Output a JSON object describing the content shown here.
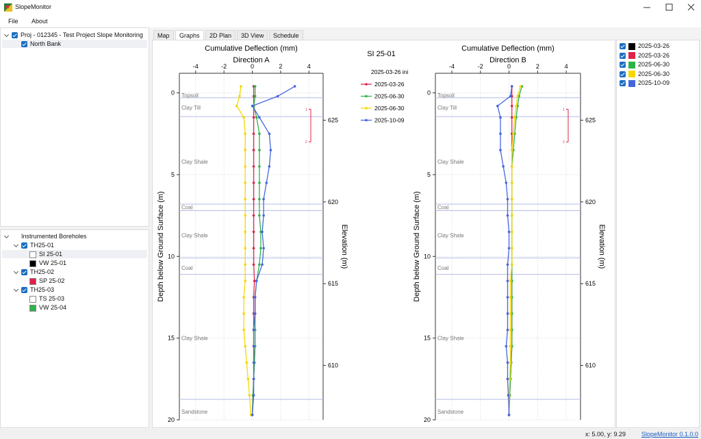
{
  "window": {
    "title": "SlopeMonitor"
  },
  "menu": [
    "File",
    "About"
  ],
  "project_tree": {
    "project": "Proj - 012345 - Test Project Slope Monitoring",
    "site": "North Bank"
  },
  "instrument_tree": {
    "root": "Instrumented Boreholes",
    "selected": "SI 25-01",
    "boreholes": [
      {
        "name": "TH25-01",
        "instruments": [
          {
            "name": "SI 25-01",
            "color": "#ffffff"
          },
          {
            "name": "VW 25-01",
            "color": "#000000"
          }
        ]
      },
      {
        "name": "TH25-02",
        "instruments": [
          {
            "name": "SP 25-02",
            "color": "#e0224a"
          }
        ]
      },
      {
        "name": "TH25-03",
        "instruments": [
          {
            "name": "TS 25-03",
            "color": "#ffffff"
          },
          {
            "name": "VW 25-04",
            "color": "#2db34a"
          }
        ]
      }
    ]
  },
  "tabs": {
    "items": [
      "Map",
      "Graphs",
      "2D Plan",
      "3D View",
      "Schedule"
    ],
    "active": 1
  },
  "chart_data": [
    {
      "type": "line",
      "title": "Cumulative Deflection (mm)",
      "subtitle": "Direction A",
      "ylabel": "Depth below Ground Surface (m)",
      "y2label": "Elevation (m)",
      "legend_title": "SI 25-01",
      "baseline_label": "2025-03-26 ini",
      "xlim": [
        -5.15,
        5
      ],
      "xticks": [
        -4,
        -2,
        0,
        2,
        4
      ],
      "ylim": [
        -1.2,
        20
      ],
      "y_inverted": true,
      "yticks": [
        0,
        5,
        10,
        15,
        20
      ],
      "y2lim": [
        606.67,
        627.87
      ],
      "y2ticks": [
        610,
        615,
        620,
        625
      ],
      "grid": true,
      "layer_lines": [
        0.3,
        1.45,
        6.8,
        7.2,
        10.1,
        11.1,
        18.75
      ],
      "layers": [
        {
          "name": "Topsoil",
          "depth": 0.15
        },
        {
          "name": "Clay Till",
          "depth": 0.9
        },
        {
          "name": "Clay Shale",
          "depth": 4.2
        },
        {
          "name": "Coal",
          "depth": 7.0
        },
        {
          "name": "Clay Shale",
          "depth": 8.7
        },
        {
          "name": "Coal",
          "depth": 10.7
        },
        {
          "name": "Clay Shale",
          "depth": 15.0
        },
        {
          "name": "Sandstone",
          "depth": 19.5
        }
      ],
      "range_marker": {
        "from": 1.0,
        "to": 3.0,
        "labels": [
          "1",
          "2"
        ],
        "color": "#e0224a"
      },
      "y": [
        -0.4,
        0.2,
        0.8,
        1.5,
        2.5,
        3.5,
        4.5,
        5.5,
        6.5,
        7.5,
        8.5,
        9.5,
        10.5,
        11.5,
        12.5,
        13.5,
        14.5,
        15.5,
        16.5,
        17.5,
        18.5,
        19.7
      ],
      "series": [
        {
          "name": "2025-03-26",
          "color": "#e0224a",
          "values": [
            0.1,
            0.1,
            0.1,
            0.1,
            0.1,
            0.1,
            0.1,
            0.1,
            0.1,
            0.1,
            0.1,
            0.1,
            0.1,
            0.15,
            0.1,
            0.1,
            0.1,
            0.1,
            0.15,
            0.1,
            0.05,
            0.0
          ]
        },
        {
          "name": "2025-06-30",
          "color": "#2db34a",
          "values": [
            0.2,
            0.2,
            0.1,
            0.3,
            0.5,
            0.5,
            0.5,
            0.5,
            0.5,
            0.5,
            0.6,
            0.6,
            0.5,
            0.3,
            0.2,
            0.2,
            0.2,
            0.2,
            0.15,
            0.1,
            0.05,
            0.0
          ]
        },
        {
          "name": "2025-06-30",
          "color": "#f5d800",
          "values": [
            -0.8,
            -0.9,
            -1.1,
            -0.6,
            -0.5,
            -0.5,
            -0.5,
            -0.5,
            -0.5,
            -0.5,
            -0.5,
            -0.5,
            -0.5,
            -0.5,
            -0.6,
            -0.6,
            -0.6,
            -0.5,
            -0.4,
            -0.3,
            -0.2,
            -0.1
          ]
        },
        {
          "name": "2025-10-09",
          "color": "#4466dd",
          "values": [
            3.0,
            1.8,
            0.0,
            0.5,
            1.2,
            1.3,
            1.2,
            1.0,
            0.8,
            0.8,
            0.7,
            0.8,
            0.7,
            0.3,
            0.2,
            0.2,
            0.1,
            0.1,
            0.1,
            0.1,
            0.1,
            0.0
          ]
        }
      ]
    },
    {
      "type": "line",
      "title": "Cumulative Deflection (mm)",
      "subtitle": "Direction B",
      "ylabel": "Depth below Ground Surface (m)",
      "y2label": "Elevation (m)",
      "xlim": [
        -5.15,
        5
      ],
      "xticks": [
        -4,
        -2,
        0,
        2,
        4
      ],
      "ylim": [
        -1.2,
        20
      ],
      "y_inverted": true,
      "yticks": [
        0,
        5,
        10,
        15,
        20
      ],
      "y2lim": [
        606.67,
        627.87
      ],
      "y2ticks": [
        610,
        615,
        620,
        625
      ],
      "grid": true,
      "layer_lines": [
        0.3,
        1.45,
        6.8,
        7.2,
        10.1,
        11.1,
        18.75
      ],
      "layers": [
        {
          "name": "Topsoil",
          "depth": 0.15
        },
        {
          "name": "Clay Till",
          "depth": 0.9
        },
        {
          "name": "Clay Shale",
          "depth": 4.2
        },
        {
          "name": "Coal",
          "depth": 7.0
        },
        {
          "name": "Clay Shale",
          "depth": 8.7
        },
        {
          "name": "Coal",
          "depth": 10.7
        },
        {
          "name": "Clay Shale",
          "depth": 15.0
        },
        {
          "name": "Sandstone",
          "depth": 19.5
        }
      ],
      "range_marker": {
        "from": 1.0,
        "to": 3.0,
        "labels": [
          "1",
          "2"
        ],
        "color": "#e0224a"
      },
      "y": [
        -0.4,
        0.2,
        0.8,
        1.5,
        2.5,
        3.5,
        4.5,
        5.5,
        6.5,
        7.5,
        8.5,
        9.5,
        10.5,
        11.5,
        12.5,
        13.5,
        14.5,
        15.5,
        16.5,
        17.5,
        18.5,
        19.7
      ],
      "series": [
        {
          "name": "2025-03-26",
          "color": "#e0224a",
          "values": [
            0.2,
            0.2,
            0.2,
            0.2,
            0.2,
            0.2,
            0.2,
            0.2,
            0.2,
            0.2,
            0.2,
            0.2,
            0.2,
            0.2,
            0.2,
            0.2,
            0.2,
            0.2,
            0.15,
            0.1,
            0.05,
            0.0
          ]
        },
        {
          "name": "2025-06-30",
          "color": "#2db34a",
          "values": [
            0.9,
            0.7,
            0.6,
            0.5,
            0.4,
            0.3,
            0.2,
            0.2,
            0.2,
            0.2,
            0.2,
            0.2,
            0.2,
            0.2,
            0.2,
            0.2,
            0.2,
            0.2,
            0.15,
            0.1,
            0.05,
            0.0
          ]
        },
        {
          "name": "2025-06-30",
          "color": "#f5d800",
          "values": [
            0.8,
            0.6,
            0.5,
            0.4,
            0.3,
            0.2,
            0.2,
            0.2,
            0.2,
            0.2,
            0.2,
            0.2,
            0.2,
            0.1,
            0.1,
            0.1,
            0.1,
            0.1,
            0.1,
            0.05,
            0.0,
            0.0
          ]
        },
        {
          "name": "2025-10-09",
          "color": "#4466dd",
          "values": [
            0.2,
            0.1,
            -0.8,
            -0.6,
            -0.6,
            -0.6,
            -0.4,
            -0.2,
            -0.1,
            -0.1,
            0.0,
            0.0,
            -0.1,
            -0.1,
            -0.1,
            -0.1,
            -0.1,
            -0.2,
            -0.1,
            -0.1,
            -0.05,
            0.0
          ]
        }
      ]
    }
  ],
  "series_panel": [
    {
      "name": "2025-03-26",
      "color": "#000000"
    },
    {
      "name": "2025-03-26",
      "color": "#e0224a"
    },
    {
      "name": "2025-06-30",
      "color": "#2db34a"
    },
    {
      "name": "2025-06-30",
      "color": "#f5d800"
    },
    {
      "name": "2025-10-09",
      "color": "#4466dd"
    }
  ],
  "status": {
    "cursor": "x: 5.00, y: 9.29",
    "version": "SlopeMonitor 0.1.0.0"
  }
}
